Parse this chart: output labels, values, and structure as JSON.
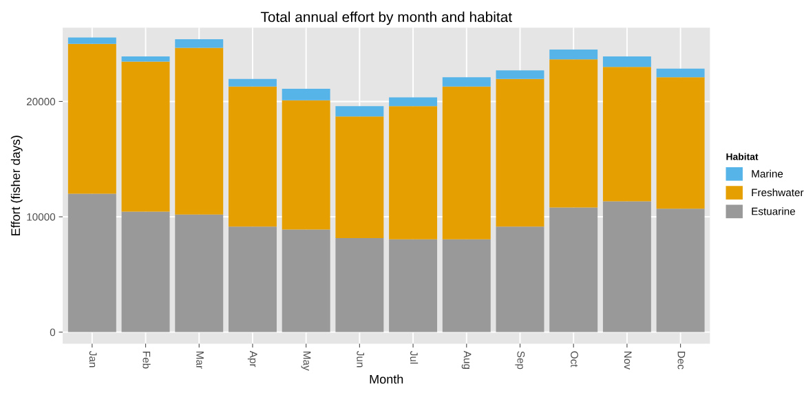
{
  "chart_data": {
    "type": "bar",
    "stacked": true,
    "title": "Total annual effort by month and habitat",
    "xlabel": "Month",
    "ylabel": "Effort (fisher days)",
    "legend_title": "Habitat",
    "legend": "right",
    "categories": [
      "Jan",
      "Feb",
      "Mar",
      "Apr",
      "May",
      "Jun",
      "Jul",
      "Aug",
      "Sep",
      "Oct",
      "Nov",
      "Dec"
    ],
    "series": [
      {
        "name": "Estuarine",
        "color": "#999999",
        "values": [
          12000,
          10450,
          10200,
          9150,
          8900,
          8150,
          8050,
          8050,
          9150,
          10800,
          11350,
          10700
        ]
      },
      {
        "name": "Freshwater",
        "color": "#e69f00",
        "values": [
          13000,
          13000,
          14450,
          12150,
          11200,
          10550,
          11550,
          13250,
          12800,
          12850,
          11650,
          11400
        ]
      },
      {
        "name": "Marine",
        "color": "#56b4e9",
        "values": [
          550,
          450,
          750,
          650,
          1000,
          900,
          750,
          800,
          750,
          850,
          900,
          750
        ]
      }
    ],
    "ylim": [
      -1000,
      26400
    ],
    "yticks": [
      0,
      10000,
      20000
    ],
    "grid": true
  }
}
